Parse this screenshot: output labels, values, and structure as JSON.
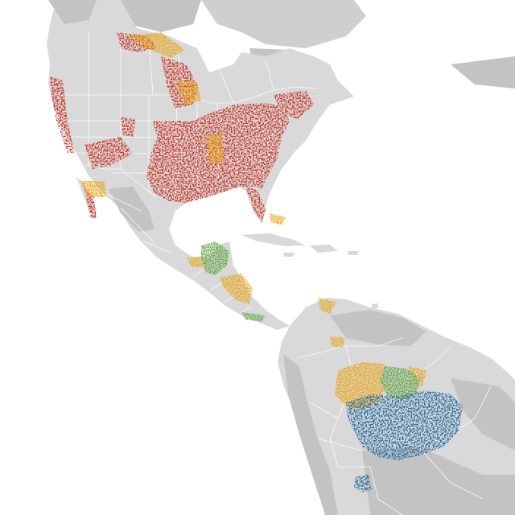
{
  "map": {
    "colors": {
      "ocean": "#ffffff",
      "land": "#d9d9d9",
      "land_dark": "#c3c3c3",
      "ice": "#cfcfcf",
      "borders": "#ffffff",
      "breeding": "#c8392b",
      "migration": "#e8a820",
      "nonbreeding": "#2a6e9e",
      "year_round": "#6aa84f"
    }
  }
}
